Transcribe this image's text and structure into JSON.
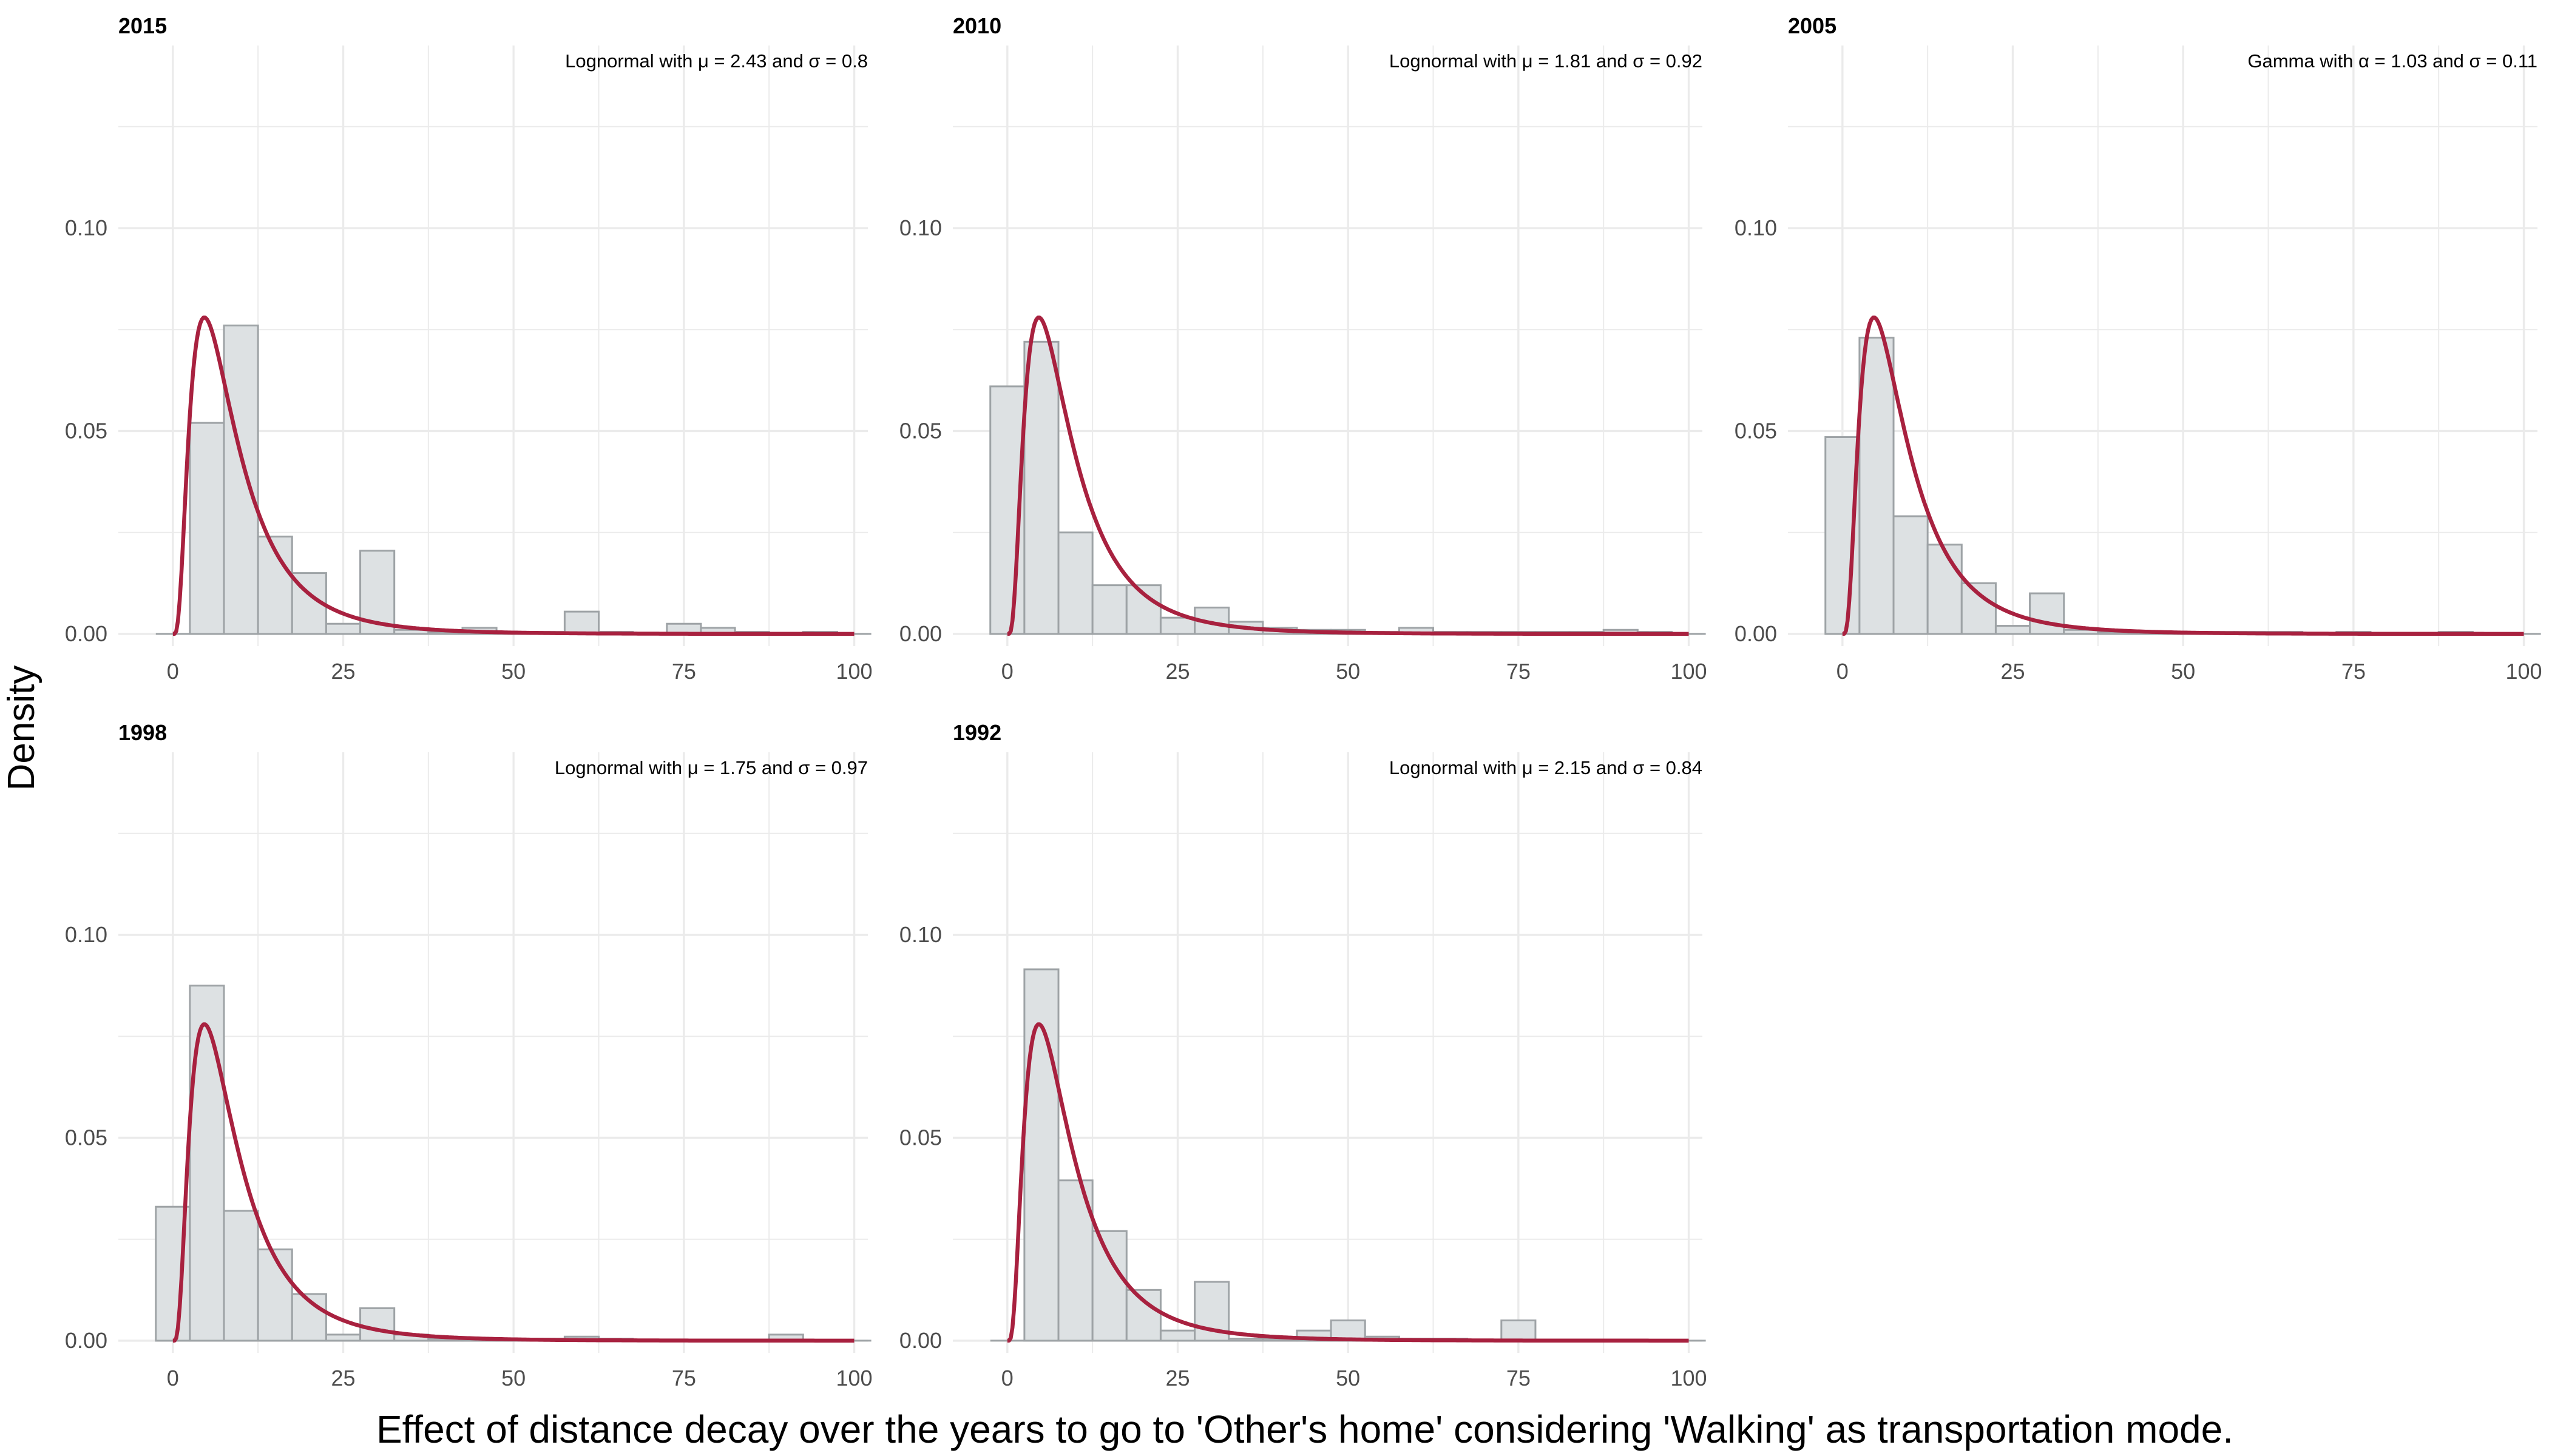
{
  "figure": {
    "xlabel": "Effect of distance decay over the years to go to 'Other's home' considering 'Walking' as transportation mode.",
    "ylabel": "Density"
  },
  "colors": {
    "bar_fill": "#dde1e3",
    "bar_stroke": "#9ea3a6",
    "curve": "#a8213f",
    "grid": "#ebebeb"
  },
  "chart_data": [
    {
      "type": "bar",
      "title": "2015",
      "annotation": "Lognormal with μ = 2.43 and σ = 0.8",
      "bin_width": 5,
      "bin_centers": [
        0,
        5,
        10,
        15,
        20,
        25,
        30,
        35,
        40,
        45,
        50,
        55,
        60,
        65,
        70,
        75,
        80,
        85,
        90,
        95,
        100
      ],
      "values": [
        0,
        0.052,
        0.076,
        0.024,
        0.015,
        0.0025,
        0.0205,
        0.001,
        0.0005,
        0.0015,
        0.0005,
        0.0005,
        0.0055,
        0.0005,
        0,
        0.0025,
        0.0015,
        0.0005,
        0,
        0.0005,
        0
      ],
      "xlim": [
        -8,
        102
      ],
      "ylim": [
        -0.003,
        0.145
      ],
      "xticks": [
        0,
        25,
        50,
        75,
        100
      ],
      "yticks": [
        0.0,
        0.05,
        0.1
      ]
    },
    {
      "type": "bar",
      "title": "2010",
      "annotation": "Lognormal with μ = 1.81 and σ = 0.92",
      "bin_width": 5,
      "bin_centers": [
        0,
        5,
        10,
        15,
        20,
        25,
        30,
        35,
        40,
        45,
        50,
        55,
        60,
        65,
        70,
        75,
        80,
        85,
        90,
        95,
        100
      ],
      "values": [
        0.061,
        0.072,
        0.025,
        0.012,
        0.012,
        0.004,
        0.0065,
        0.003,
        0.0015,
        0.001,
        0.001,
        0.0005,
        0.0015,
        0.0005,
        0.0005,
        0.0005,
        0.0005,
        0.0005,
        0.001,
        0.0005,
        0
      ],
      "xlim": [
        -8,
        102
      ],
      "ylim": [
        -0.003,
        0.145
      ],
      "xticks": [
        0,
        25,
        50,
        75,
        100
      ],
      "yticks": [
        0.0,
        0.05,
        0.1
      ]
    },
    {
      "type": "bar",
      "title": "2005",
      "annotation": "Gamma with α = 1.03 and σ = 0.11",
      "bin_width": 5,
      "bin_centers": [
        0,
        5,
        10,
        15,
        20,
        25,
        30,
        35,
        40,
        45,
        50,
        55,
        60,
        65,
        70,
        75,
        80,
        85,
        90,
        95,
        100
      ],
      "values": [
        0.0485,
        0.073,
        0.029,
        0.022,
        0.0125,
        0.002,
        0.01,
        0.001,
        0.0005,
        0.0005,
        0.0005,
        0.0005,
        0.0005,
        0.0005,
        0,
        0.0005,
        0,
        0,
        0.0005,
        0,
        0
      ],
      "xlim": [
        -8,
        102
      ],
      "ylim": [
        -0.003,
        0.145
      ],
      "xticks": [
        0,
        25,
        50,
        75,
        100
      ],
      "yticks": [
        0.0,
        0.05,
        0.1
      ]
    },
    {
      "type": "bar",
      "title": "1998",
      "annotation": "Lognormal with μ = 1.75 and σ = 0.97",
      "bin_width": 5,
      "bin_centers": [
        0,
        5,
        10,
        15,
        20,
        25,
        30,
        35,
        40,
        45,
        50,
        55,
        60,
        65,
        70,
        75,
        80,
        85,
        90,
        95,
        100
      ],
      "values": [
        0.033,
        0.0875,
        0.032,
        0.0225,
        0.0115,
        0.0015,
        0.008,
        0.0015,
        0.0005,
        0.0005,
        0.0005,
        0.0005,
        0.001,
        0.0005,
        0,
        0,
        0,
        0,
        0.0015,
        0,
        0
      ],
      "xlim": [
        -8,
        102
      ],
      "ylim": [
        -0.003,
        0.145
      ],
      "xticks": [
        0,
        25,
        50,
        75,
        100
      ],
      "yticks": [
        0.0,
        0.05,
        0.1
      ]
    },
    {
      "type": "bar",
      "title": "1992",
      "annotation": "Lognormal with μ = 2.15 and σ = 0.84",
      "bin_width": 5,
      "bin_centers": [
        0,
        5,
        10,
        15,
        20,
        25,
        30,
        35,
        40,
        45,
        50,
        55,
        60,
        65,
        70,
        75,
        80,
        85,
        90,
        95,
        100
      ],
      "values": [
        0,
        0.0915,
        0.0395,
        0.027,
        0.0125,
        0.0025,
        0.0145,
        0.0005,
        0.0005,
        0.0025,
        0.005,
        0.001,
        0.0005,
        0.0005,
        0,
        0.005,
        0,
        0,
        0,
        0,
        0
      ],
      "xlim": [
        -8,
        102
      ],
      "ylim": [
        -0.003,
        0.145
      ],
      "xticks": [
        0,
        25,
        50,
        75,
        100
      ],
      "yticks": [
        0.0,
        0.05,
        0.1
      ]
    }
  ]
}
